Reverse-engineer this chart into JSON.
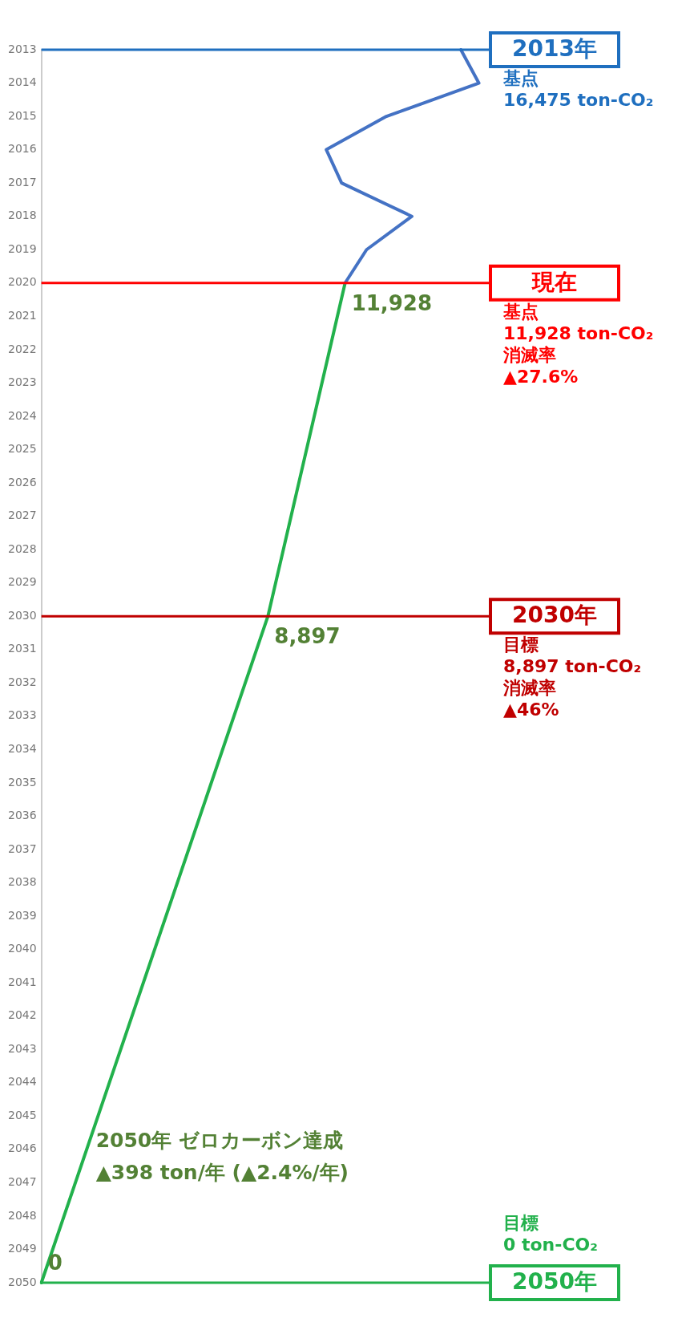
{
  "chart_data": {
    "type": "line",
    "orientation": "horizontal",
    "categories": [
      "2013",
      "2014",
      "2015",
      "2016",
      "2017",
      "2018",
      "2019",
      "2020",
      "2021",
      "2022",
      "2023",
      "2024",
      "2025",
      "2026",
      "2027",
      "2028",
      "2029",
      "2030",
      "2031",
      "2032",
      "2033",
      "2034",
      "2035",
      "2036",
      "2037",
      "2038",
      "2039",
      "2040",
      "2041",
      "2042",
      "2043",
      "2044",
      "2045",
      "2046",
      "2047",
      "2048",
      "2049",
      "2050"
    ],
    "series": [
      {
        "color": "#4472c4",
        "values": [
          16475,
          17180,
          13550,
          11190,
          11790,
          14550,
          12770,
          11928,
          null,
          null,
          null,
          null,
          null,
          null,
          null,
          null,
          null,
          null,
          null,
          null,
          null,
          null,
          null,
          null,
          null,
          null,
          null,
          null,
          null,
          null,
          null,
          null,
          null,
          null,
          null,
          null,
          null,
          null
        ]
      },
      {
        "color": "#22b14c",
        "values": [
          null,
          null,
          null,
          null,
          null,
          null,
          null,
          11928,
          null,
          null,
          null,
          null,
          null,
          null,
          null,
          null,
          null,
          8897,
          null,
          null,
          null,
          null,
          null,
          null,
          null,
          null,
          null,
          null,
          null,
          null,
          null,
          null,
          null,
          null,
          null,
          null,
          null,
          0
        ],
        "value_labels": [
          null,
          null,
          null,
          null,
          null,
          null,
          null,
          "11,928",
          null,
          null,
          null,
          null,
          null,
          null,
          null,
          null,
          null,
          "8,897",
          null,
          null,
          null,
          null,
          null,
          null,
          null,
          null,
          null,
          null,
          null,
          null,
          null,
          null,
          null,
          null,
          null,
          null,
          null,
          "0"
        ]
      }
    ],
    "tick_labels": "y",
    "grid": false,
    "legend": false,
    "marker": "none",
    "ref_lines": [
      {
        "axis": "y",
        "value": "2013",
        "label": "2013年",
        "color": "#1f6fbf"
      },
      {
        "axis": "y",
        "value": "2020",
        "label": "現在",
        "color": "#ff0000"
      },
      {
        "axis": "y",
        "value": "2030",
        "label": "2030年",
        "color": "#c00000"
      },
      {
        "axis": "y",
        "value": "2050",
        "label": "2050年",
        "color": "#22b14c"
      }
    ],
    "annotations": [
      "基点\n16,475 ton-CO₂",
      "基点\n11,928 ton-CO₂\n消滅率\n▲27.6%",
      "目標\n8,897 ton-CO₂\n消滅率\n▲46%",
      "2050年 ゼロカーボン達成\n▲398 ton/年 (▲2.4%/年)",
      "目標\n0 ton-CO₂"
    ]
  }
}
